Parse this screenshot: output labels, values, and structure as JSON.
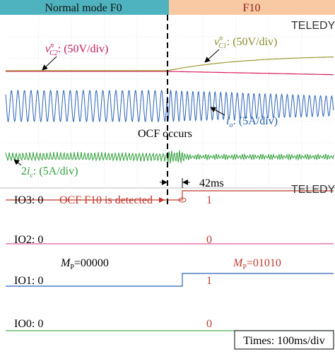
{
  "header": {
    "left": "Normal mode F0",
    "right": "F10"
  },
  "logos": [
    "TELEDYNE LECROY",
    "TELEDYNE LECROY"
  ],
  "top_panel": {
    "vc2": {
      "symbol": "v",
      "sub": "C2",
      "sup": "n",
      "scale": ": (50V/div)"
    },
    "vc1": {
      "symbol": "v",
      "sub": "C1",
      "sup": "n",
      "scale": ": (50V/div)"
    },
    "io": {
      "symbol": "i",
      "sub": "o",
      "scale": ": (5A/div)"
    },
    "ocf": "OCF occurs",
    "ic": {
      "prefix": "2",
      "symbol": "i",
      "sub": "c",
      "scale": ": (5A/div)"
    },
    "delay": "42ms"
  },
  "bottom_panel": {
    "io3": {
      "label": "IO3: 0",
      "after": "1"
    },
    "detected": "OCF F10 is detected",
    "io2": {
      "label": "IO2: 0",
      "after": "0"
    },
    "mp_before": {
      "symbol": "M",
      "sub": "P",
      "value": "=00000"
    },
    "mp_after": {
      "symbol": "M",
      "sub": "P",
      "value": "=01010"
    },
    "io1": {
      "label": "IO1: 0",
      "after": "1"
    },
    "io0": {
      "label": "IO0: 0",
      "after": "0"
    },
    "time": "Times: 100ms/div"
  }
}
